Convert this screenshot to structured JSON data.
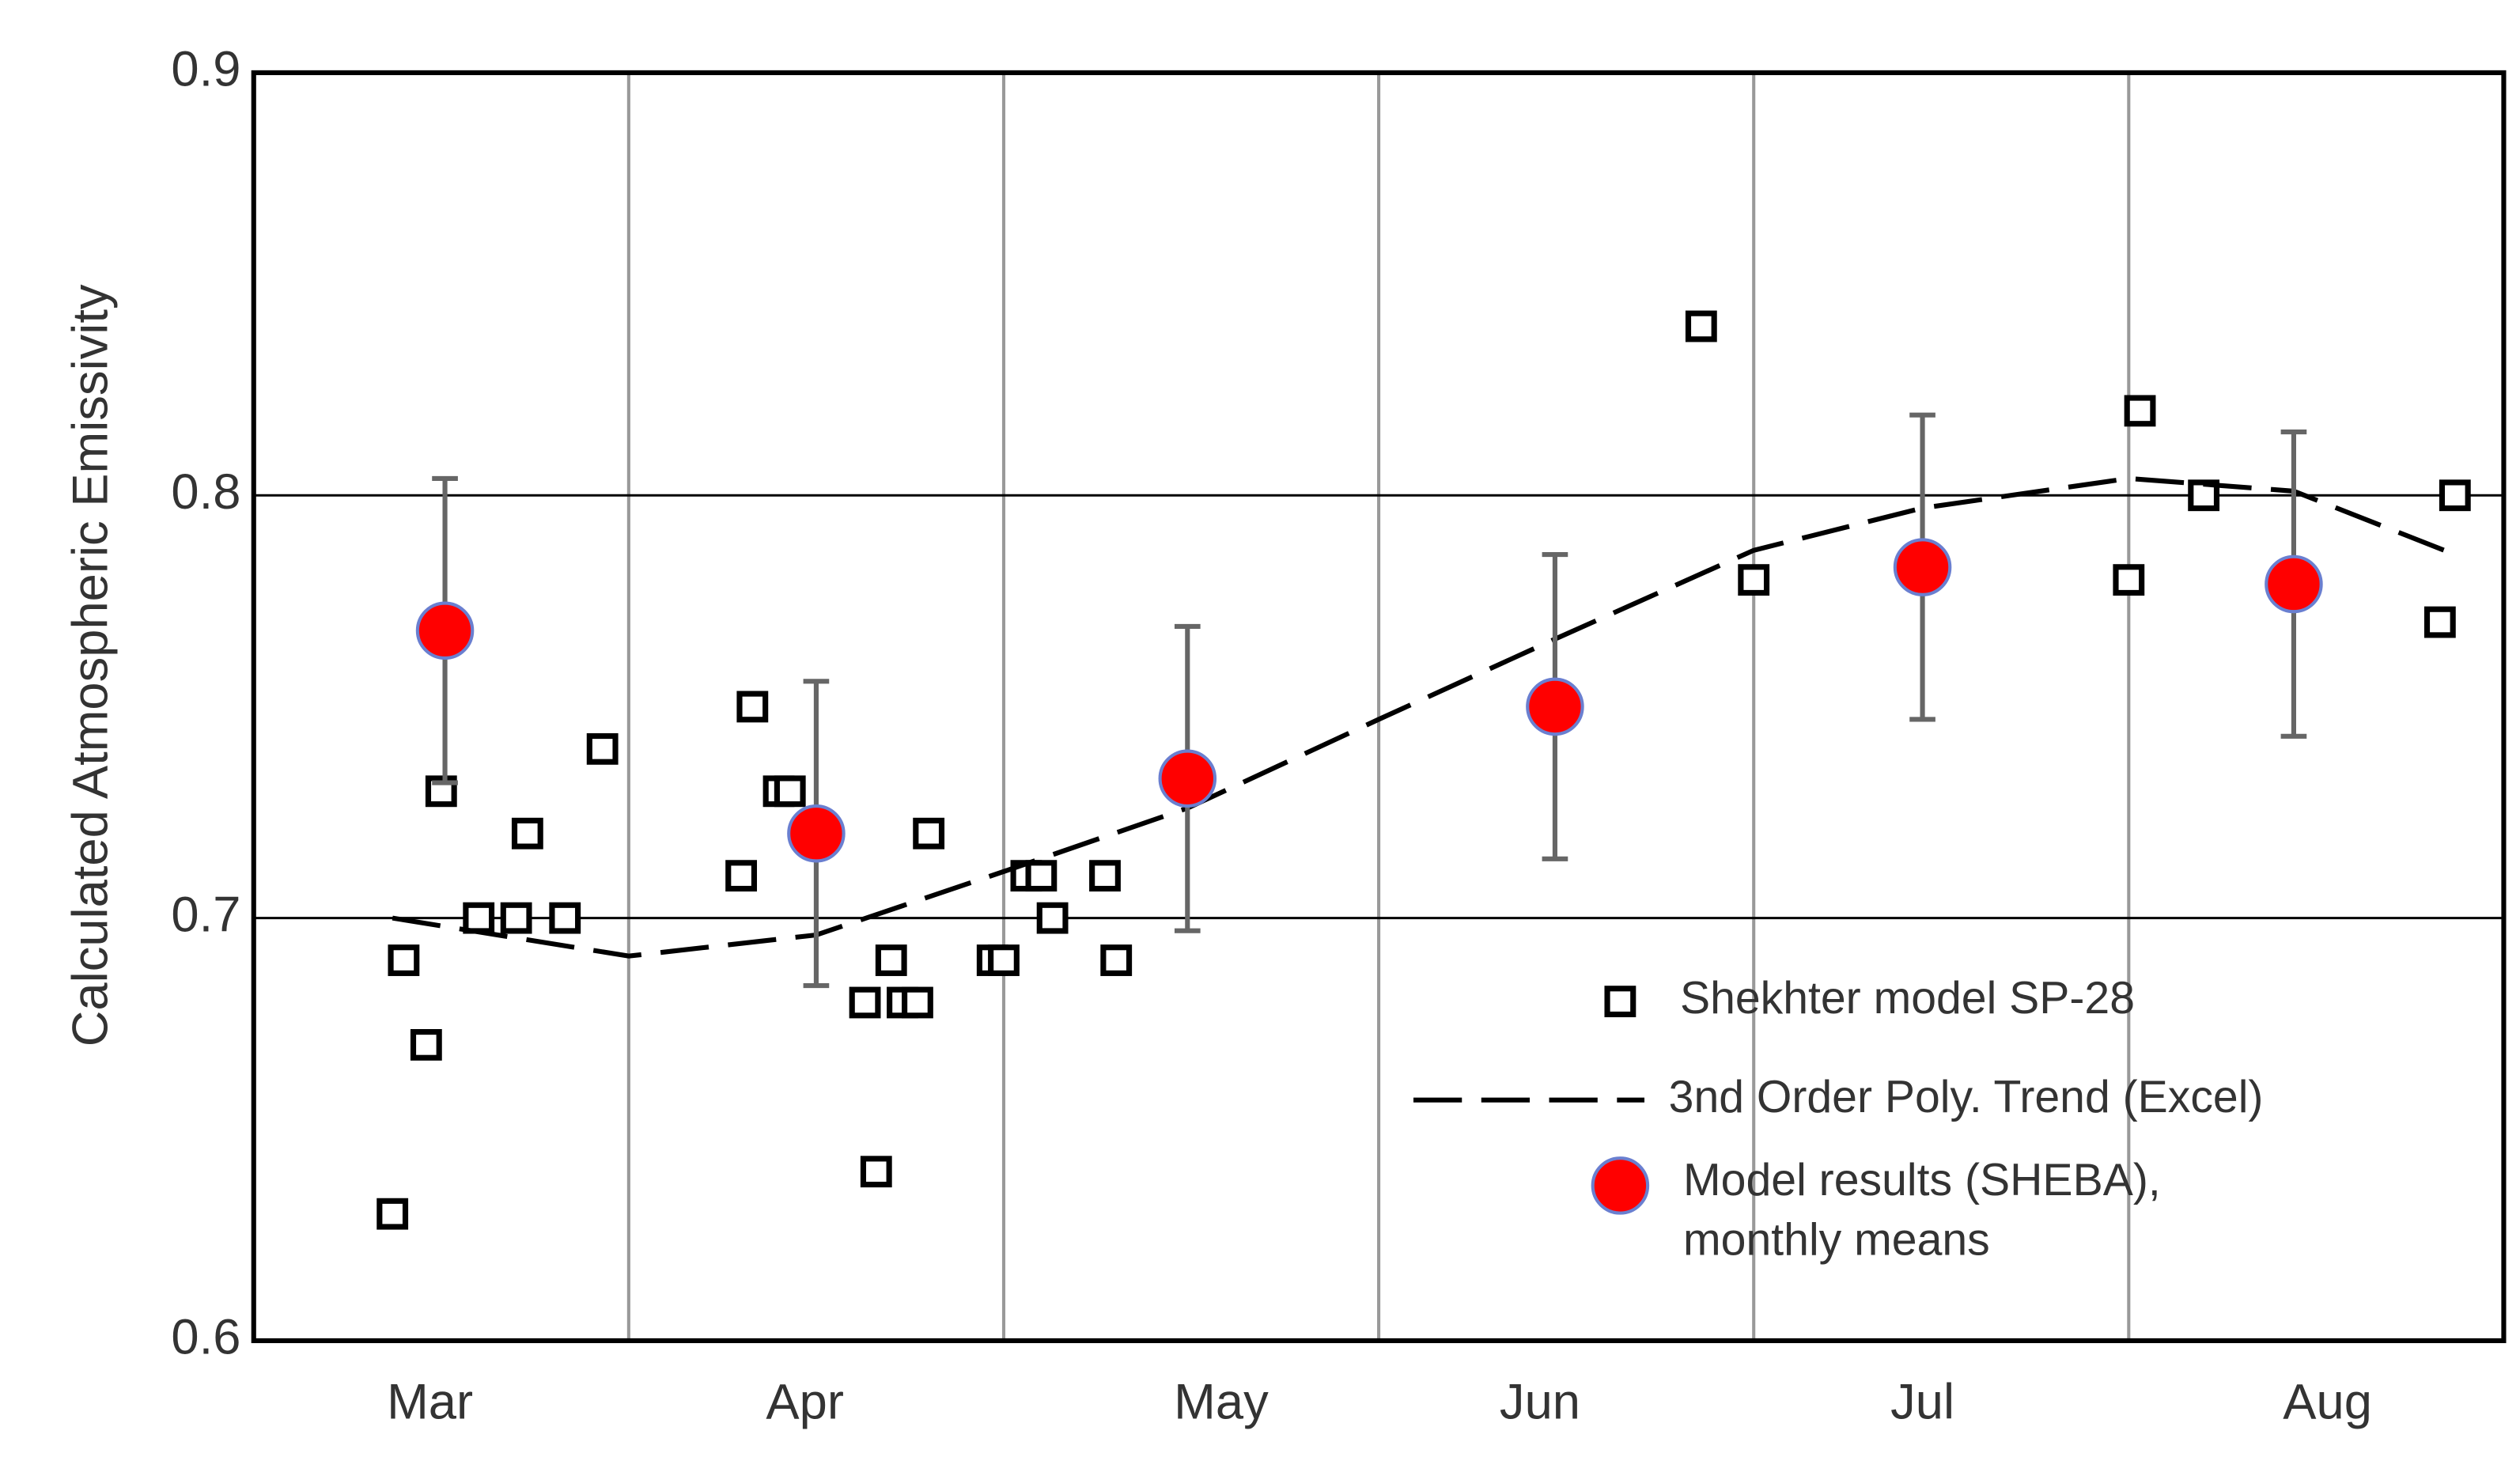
{
  "chart_data": {
    "type": "scatter",
    "y_label": "Calculated Atmospheric Emissivity",
    "xlim": [
      0,
      6
    ],
    "ylim": [
      0.6,
      0.9
    ],
    "yticks": [
      0.6,
      0.7,
      0.8,
      0.9
    ],
    "xticks": [
      {
        "value": 0.47,
        "label": "Mar"
      },
      {
        "value": 1.47,
        "label": "Apr"
      },
      {
        "value": 2.58,
        "label": "May"
      },
      {
        "value": 3.43,
        "label": "Jun"
      },
      {
        "value": 4.45,
        "label": "Jul"
      },
      {
        "value": 5.53,
        "label": "Aug"
      }
    ],
    "xgrid": [
      1,
      2,
      3,
      4,
      5
    ],
    "grid": true,
    "legend": "lower right",
    "series": [
      {
        "name": "Shekhter model SP-28",
        "type": "scatter",
        "marker": "square",
        "color": "#000000",
        "x": [
          0.37,
          0.4,
          0.46,
          0.5,
          0.6,
          0.7,
          0.73,
          0.83,
          0.93,
          1.3,
          1.33,
          1.4,
          1.43,
          1.63,
          1.66,
          1.7,
          1.73,
          1.77,
          1.8,
          1.97,
          2.0,
          2.06,
          2.1,
          2.13,
          2.27,
          2.3,
          3.86,
          4.0,
          5.0,
          5.03,
          5.2,
          5.83,
          5.87
        ],
        "values": [
          0.63,
          0.69,
          0.67,
          0.73,
          0.7,
          0.7,
          0.72,
          0.7,
          0.74,
          0.71,
          0.75,
          0.73,
          0.73,
          0.68,
          0.64,
          0.69,
          0.68,
          0.68,
          0.72,
          0.69,
          0.69,
          0.71,
          0.71,
          0.7,
          0.71,
          0.69,
          0.84,
          0.78,
          0.78,
          0.82,
          0.8,
          0.77,
          0.8
        ]
      },
      {
        "name": "3nd Order Poly. Trend (Excel)",
        "type": "line",
        "color": "#000000",
        "x": [
          0.37,
          1.0,
          1.5,
          2.0,
          2.49,
          3.0,
          3.47,
          4.0,
          4.45,
          5.0,
          5.44,
          5.87
        ],
        "values": [
          0.7,
          0.691,
          0.696,
          0.711,
          0.726,
          0.747,
          0.766,
          0.787,
          0.797,
          0.804,
          0.801,
          0.786
        ]
      },
      {
        "name": "Model results (SHEBA), monthly means",
        "type": "scatter",
        "marker": "circle",
        "color": "#ff0000",
        "x": [
          0.51,
          1.5,
          2.49,
          3.47,
          4.45,
          5.44
        ],
        "values": [
          0.768,
          0.72,
          0.733,
          0.75,
          0.783,
          0.779
        ],
        "errors": [
          0.036,
          0.036,
          0.036,
          0.036,
          0.036,
          0.036
        ]
      }
    ]
  }
}
